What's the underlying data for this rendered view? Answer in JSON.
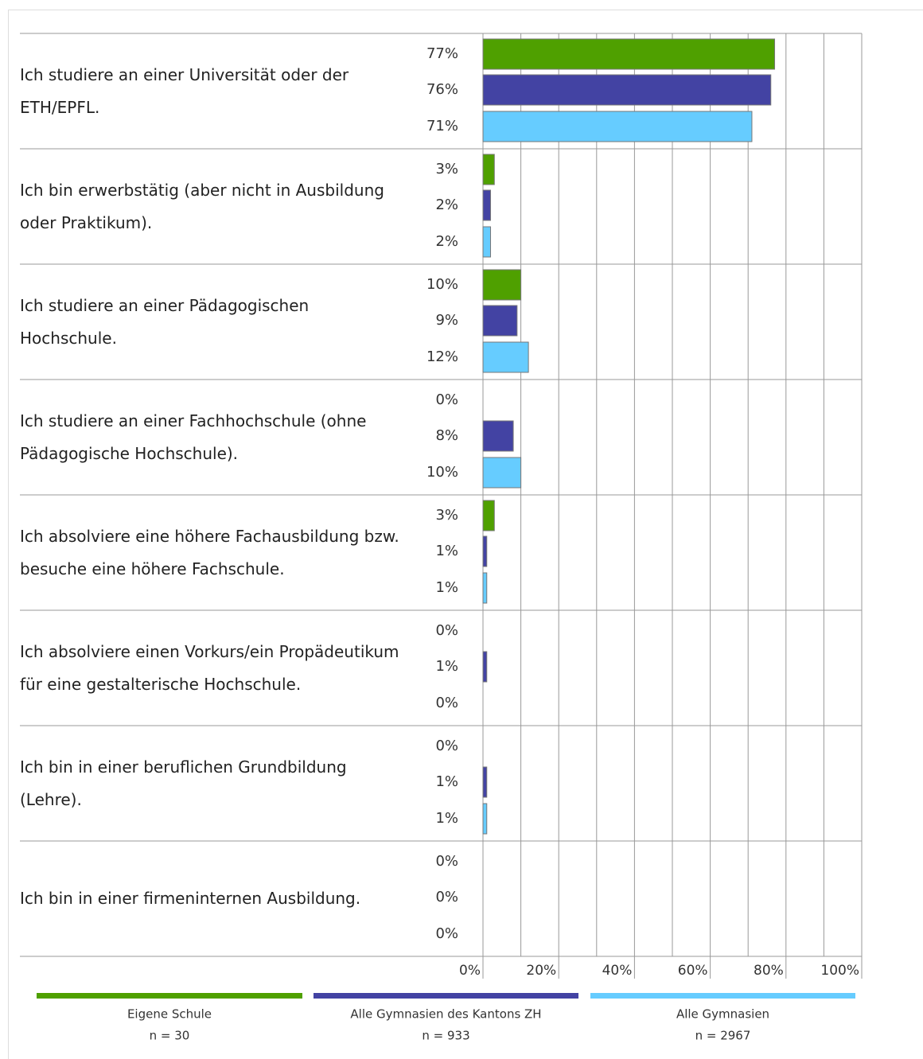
{
  "chart_data": {
    "type": "hbar",
    "categories": [
      "Ich studiere an einer Universität oder der ETH/EPFL.",
      "Ich bin erwerbstätig (aber nicht in Ausbildung oder Praktikum).",
      "Ich studiere an einer Pädagogischen Hochschule.",
      "Ich studiere an einer Fachhochschule (ohne Pädagogische Hochschule).",
      "Ich absolviere eine höhere Fachausbildung bzw.  besuche eine höhere Fachschule.",
      "Ich absolviere einen Vorkurs/ein Propädeutikum für eine gestalterische Hochschule.",
      "Ich bin in einer beruflichen Grundbildung (Lehre).",
      "Ich bin in einer firmeninternen Ausbildung."
    ],
    "series": [
      {
        "name": "Eigene Schule",
        "sample": "n = 30",
        "color": "#4fa000",
        "values": [
          77,
          3,
          10,
          0,
          3,
          0,
          0,
          0
        ],
        "value_labels": [
          "77%",
          "3%",
          "10%",
          "0%",
          "3%",
          "0%",
          "0%",
          "0%"
        ]
      },
      {
        "name": "Alle Gymnasien des Kantons ZH",
        "sample": "n = 933",
        "color": "#4343a3",
        "values": [
          76,
          2,
          9,
          8,
          1,
          1,
          1,
          0
        ],
        "value_labels": [
          "76%",
          "2%",
          "9%",
          "8%",
          "1%",
          "1%",
          "1%",
          "0%"
        ]
      },
      {
        "name": "Alle Gymnasien",
        "sample": "n = 2967",
        "color": "#66ccff",
        "values": [
          71,
          2,
          12,
          10,
          1,
          0,
          1,
          0
        ],
        "value_labels": [
          "71%",
          "2%",
          "12%",
          "10%",
          "1%",
          "0%",
          "1%",
          "0%"
        ]
      }
    ],
    "xlim": [
      0,
      100
    ],
    "xticks": [
      {
        "value": 0,
        "label": "0%"
      },
      {
        "value": 20,
        "label": "20%"
      },
      {
        "value": 40,
        "label": "40%"
      },
      {
        "value": 60,
        "label": "60%"
      },
      {
        "value": 80,
        "label": "80%"
      },
      {
        "value": 100,
        "label": "100%"
      }
    ],
    "minor_xticks": [
      10,
      30,
      50,
      70,
      90
    ],
    "grid": true
  }
}
